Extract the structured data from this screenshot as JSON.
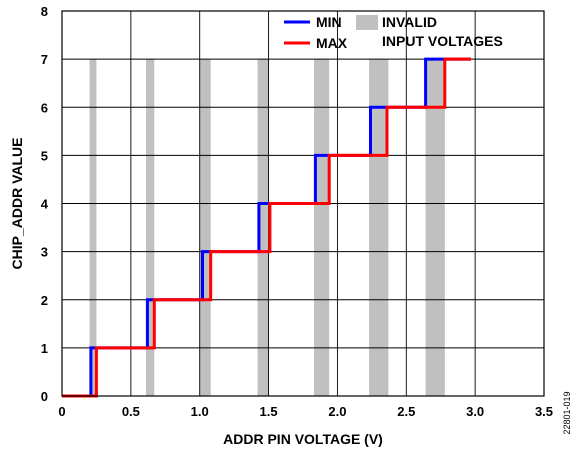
{
  "chart_data": {
    "type": "line",
    "title": "",
    "xlabel": "ADDR PIN VOLTAGE (V)",
    "ylabel": "CHIP_ADDR VALUE",
    "xlim": [
      0,
      3.5
    ],
    "ylim": [
      0,
      8
    ],
    "x_ticks": [
      "0",
      "0.5",
      "1.0",
      "1.5",
      "2.0",
      "2.5",
      "3.0",
      "3.5"
    ],
    "y_ticks": [
      "0",
      "1",
      "2",
      "3",
      "4",
      "5",
      "6",
      "7",
      "8"
    ],
    "grid": true,
    "legend_placement": "top-right",
    "series": [
      {
        "name": "MIN",
        "color": "#0000ff",
        "style": "step",
        "x": [
          0,
          0.21,
          0.21,
          0.62,
          0.62,
          1.02,
          1.02,
          1.43,
          1.43,
          1.84,
          1.84,
          2.24,
          2.24,
          2.64,
          2.64,
          2.97
        ],
        "y": [
          0,
          0,
          1,
          1,
          2,
          2,
          3,
          3,
          4,
          4,
          5,
          5,
          6,
          6,
          7,
          7
        ]
      },
      {
        "name": "MAX",
        "color": "#ff0000",
        "style": "step",
        "x": [
          0,
          0.25,
          0.25,
          0.67,
          0.67,
          1.08,
          1.08,
          1.51,
          1.51,
          1.94,
          1.94,
          2.36,
          2.36,
          2.78,
          2.78,
          2.97
        ],
        "y": [
          0,
          0,
          1,
          1,
          2,
          2,
          3,
          3,
          4,
          4,
          5,
          5,
          6,
          6,
          7,
          7
        ]
      }
    ],
    "invalid_bands": {
      "name": "INVALID INPUT VOLTAGES",
      "color": "#c0c0c0",
      "ranges": [
        [
          0.2,
          0.25
        ],
        [
          0.61,
          0.67
        ],
        [
          1.0,
          1.08
        ],
        [
          1.42,
          1.5
        ],
        [
          1.83,
          1.94
        ],
        [
          2.23,
          2.37
        ],
        [
          2.64,
          2.78
        ]
      ],
      "y_top": 7
    },
    "legend": [
      {
        "label": "MIN",
        "color": "#0000ff"
      },
      {
        "label": "MAX",
        "color": "#ff0000"
      },
      {
        "label": "INVALID",
        "color": "#c0c0c0"
      }
    ],
    "legend_extra_line": "INPUT VOLTAGES",
    "figure_code": "22801-019"
  }
}
